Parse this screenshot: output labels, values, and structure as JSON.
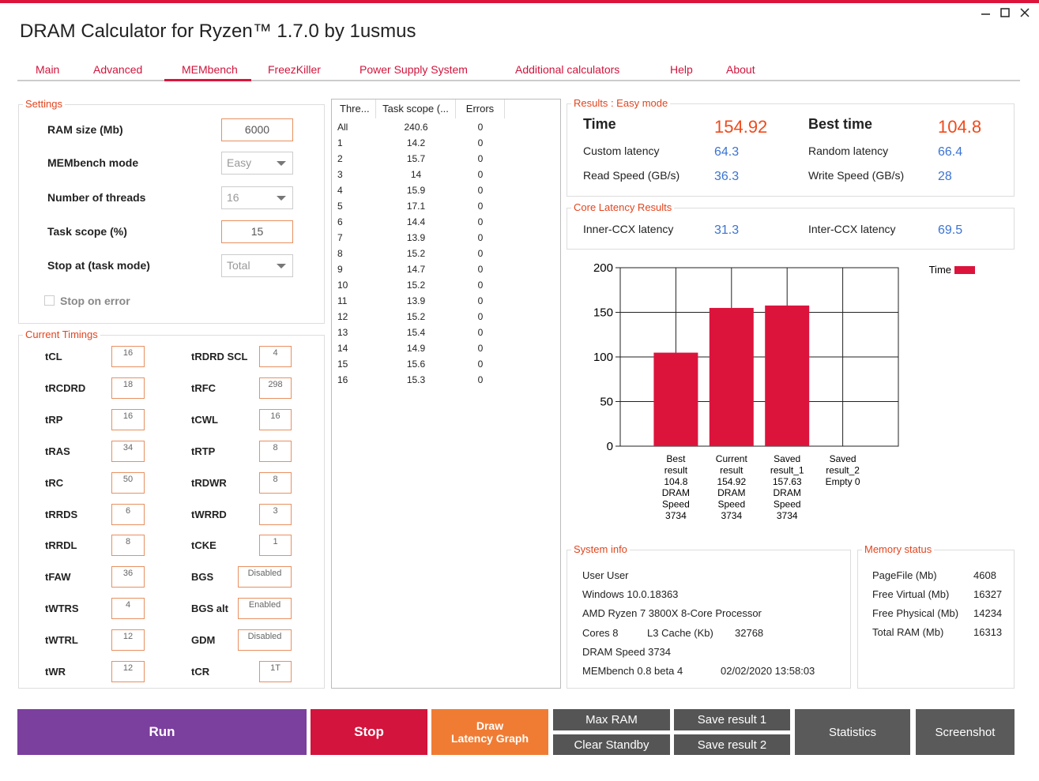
{
  "window": {
    "title": "DRAM Calculator for Ryzen™ 1.7.0 by 1usmus"
  },
  "tabs": [
    "Main",
    "Advanced",
    "MEMbench",
    "FreezKiller",
    "Power Supply System",
    "Additional calculators",
    "Help",
    "About"
  ],
  "settings": {
    "title": "Settings",
    "fields": [
      {
        "label": "RAM size (Mb)",
        "value": 6000
      },
      {
        "label": "MEMbench mode",
        "value": "Easy"
      },
      {
        "label": "Number of threads",
        "value": 16
      },
      {
        "label": "Task scope (%)",
        "value": 15
      },
      {
        "label": "Stop at (task mode)",
        "value": "Total"
      }
    ],
    "checkbox": "Stop on error"
  },
  "timings": {
    "title": "Current Timings",
    "left": [
      {
        "label": "tCL",
        "value": 16
      },
      {
        "label": "tRCDRD",
        "value": 18
      },
      {
        "label": "tRP",
        "value": 16
      },
      {
        "label": "tRAS",
        "value": 34
      },
      {
        "label": "tRC",
        "value": 50
      },
      {
        "label": "tRRDS",
        "value": 6
      },
      {
        "label": "tRRDL",
        "value": 8
      },
      {
        "label": "tFAW",
        "value": 36
      },
      {
        "label": "tWTRS",
        "value": 4
      },
      {
        "label": "tWTRL",
        "value": 12
      },
      {
        "label": "tWR",
        "value": 12
      }
    ],
    "right": [
      {
        "label": "tRDRD SCL",
        "value": 4
      },
      {
        "label": "tRFC",
        "value": 298
      },
      {
        "label": "tCWL",
        "value": 16
      },
      {
        "label": "tRTP",
        "value": 8
      },
      {
        "label": "tRDWR",
        "value": 8
      },
      {
        "label": "tWRRD",
        "value": 3
      },
      {
        "label": "tCKE",
        "value": 1
      },
      {
        "label": "BGS",
        "value": "Disabled"
      },
      {
        "label": "BGS alt",
        "value": "Enabled"
      },
      {
        "label": "GDM",
        "value": "Disabled"
      },
      {
        "label": "tCR",
        "value": "1T"
      }
    ]
  },
  "threads_table": {
    "columns": [
      "Thre...",
      "Task scope (...",
      "Errors"
    ],
    "rows": [
      [
        "All",
        240.6,
        0
      ],
      [
        1,
        14.2,
        0
      ],
      [
        2,
        15.7,
        0
      ],
      [
        3,
        14,
        0
      ],
      [
        4,
        15.9,
        0
      ],
      [
        5,
        17.1,
        0
      ],
      [
        6,
        14.4,
        0
      ],
      [
        7,
        13.9,
        0
      ],
      [
        8,
        15.2,
        0
      ],
      [
        9,
        14.7,
        0
      ],
      [
        10,
        15.2,
        0
      ],
      [
        11,
        13.9,
        0
      ],
      [
        12,
        15.2,
        0
      ],
      [
        13,
        15.4,
        0
      ],
      [
        14,
        14.9,
        0
      ],
      [
        15,
        15.6,
        0
      ],
      [
        16,
        15.3,
        0
      ]
    ]
  },
  "results": {
    "title": "Results : Easy mode",
    "rows": [
      [
        {
          "label": "Time",
          "value": 154.92
        },
        {
          "label": "Best time",
          "value": 104.8
        }
      ],
      [
        {
          "label": "Custom latency",
          "value": 64.3
        },
        {
          "label": "Random latency",
          "value": 66.4
        }
      ],
      [
        {
          "label": "Read Speed (GB/s)",
          "value": 36.3
        },
        {
          "label": "Write Speed (GB/s)",
          "value": 28
        }
      ]
    ]
  },
  "core_latency": {
    "title": "Core Latency Results",
    "rows": [
      [
        {
          "label": "Inner-CCX latency",
          "value": 31.3
        },
        {
          "label": "Inter-CCX latency",
          "value": 69.5
        }
      ]
    ]
  },
  "chart_data": {
    "type": "bar",
    "categories": [
      [
        "Best",
        "result",
        "104.8",
        "DRAM",
        "Speed",
        "3734"
      ],
      [
        "Current",
        "result",
        "154.92",
        "DRAM",
        "Speed",
        "3734"
      ],
      [
        "Saved",
        "result_1",
        "157.63",
        "DRAM",
        "Speed",
        "3734"
      ],
      [
        "Saved",
        "result_2",
        "Empty    0"
      ]
    ],
    "series": [
      {
        "name": "Time",
        "color": "#dc143c",
        "values": [
          104.8,
          154.92,
          157.63,
          null
        ]
      }
    ],
    "ylim": [
      0,
      200
    ],
    "yticks": [
      0,
      50,
      100,
      150,
      200
    ],
    "grid": true
  },
  "system_info": {
    "title": "System info",
    "rows": [
      [
        "User User"
      ],
      [
        "Windows 10.0.18363"
      ],
      [
        "AMD Ryzen 7 3800X 8-Core Processor"
      ],
      [
        "Cores 8",
        "L3 Cache (Kb)",
        32768
      ],
      [
        "DRAM Speed 3734"
      ],
      [
        "MEMbench 0.8 beta 4",
        "02/02/2020 13:58:03"
      ]
    ]
  },
  "memory_status": {
    "title": "Memory status",
    "rows": [
      [
        "PageFile (Mb)",
        4608
      ],
      [
        "Free Virtual (Mb)",
        16327
      ],
      [
        "Free Physical (Mb)",
        14234
      ],
      [
        "Total RAM (Mb)",
        16313
      ]
    ]
  },
  "buttons": [
    [
      "Run"
    ],
    [
      "Stop"
    ],
    [
      "Draw",
      "Latency Graph"
    ],
    [
      "Max RAM"
    ],
    [
      "Clear Standby"
    ],
    [
      "Save result 1"
    ],
    [
      "Save result 2"
    ],
    [
      "Statistics"
    ],
    [
      "Screenshot"
    ]
  ]
}
